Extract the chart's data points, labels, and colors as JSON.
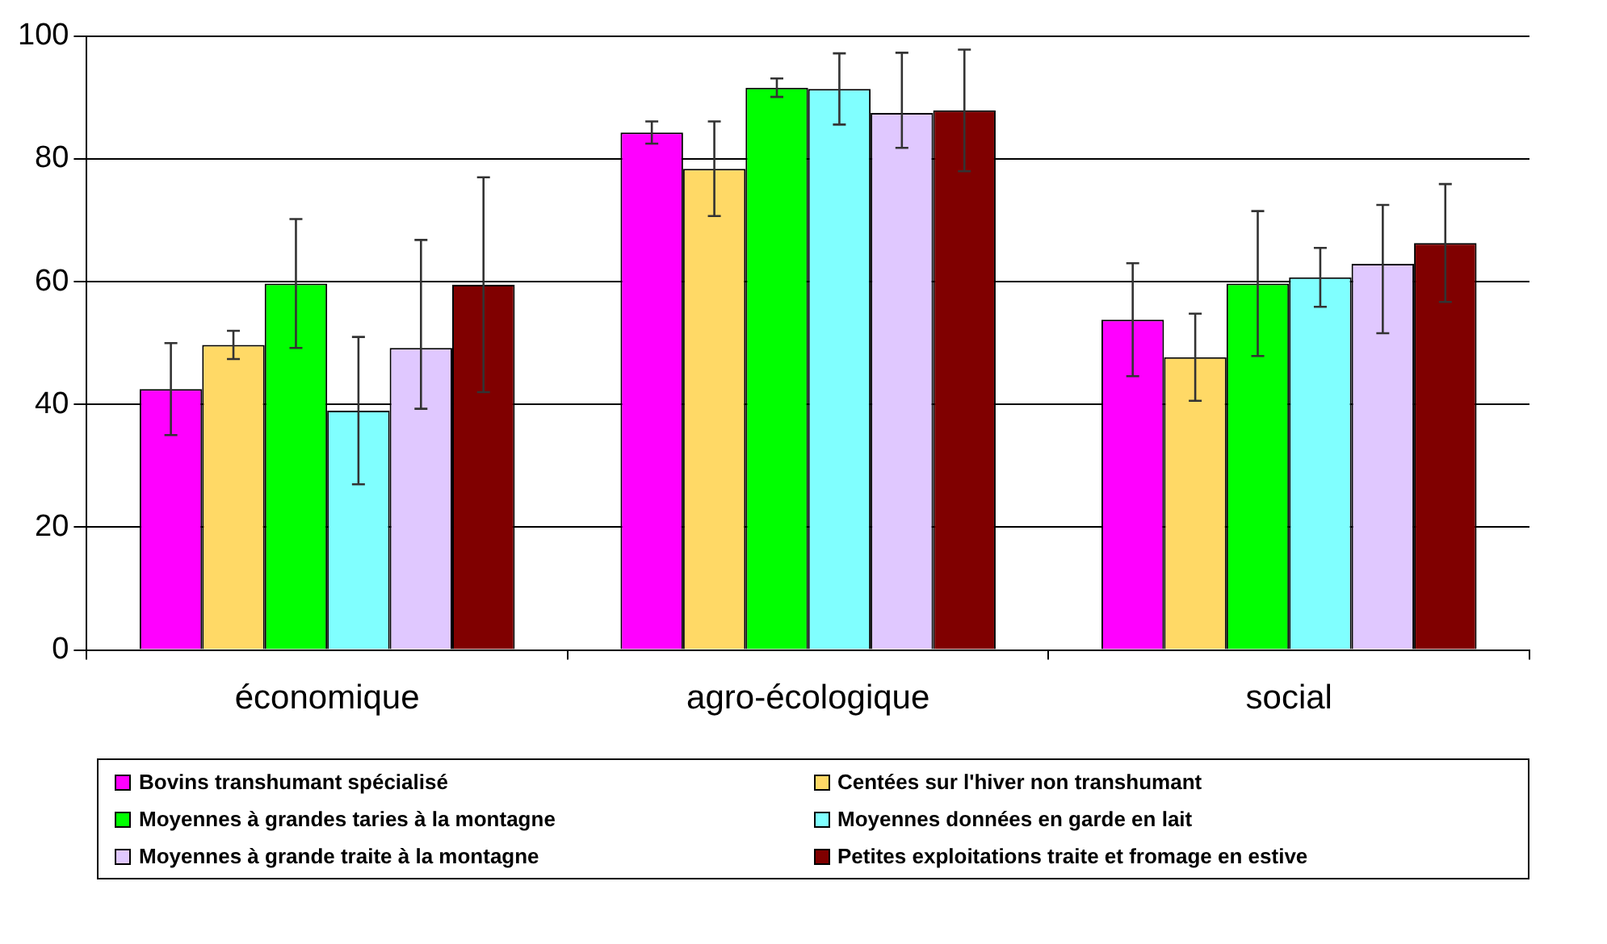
{
  "chart_data": {
    "type": "bar",
    "categories": [
      "économique",
      "agro-écologique",
      "social"
    ],
    "ylim": [
      0,
      100
    ],
    "yticks": [
      0,
      20,
      40,
      60,
      80,
      100
    ],
    "grid": "y",
    "legend": "bottom",
    "series": [
      {
        "name": "Bovins transhumant spécialisé",
        "color": "#ff00ff",
        "values": [
          42.5,
          84.3,
          53.8
        ],
        "errors": [
          7.5,
          1.8,
          9.2
        ]
      },
      {
        "name": "Centées sur l'hiver non transhumant",
        "color": "#ffd966",
        "values": [
          49.7,
          78.4,
          47.7
        ],
        "errors": [
          2.3,
          7.7,
          7.1
        ]
      },
      {
        "name": "Moyennes à grandes taries à la montagne",
        "color": "#00ff00",
        "values": [
          59.7,
          91.6,
          59.7
        ],
        "errors": [
          10.5,
          1.5,
          11.8
        ]
      },
      {
        "name": "Moyennes données en garde en lait",
        "color": "#80ffff",
        "values": [
          39,
          91.4,
          60.7
        ],
        "errors": [
          12,
          5.8,
          4.8
        ]
      },
      {
        "name": "Moyennes à grande traite à la montagne",
        "color": "#e0c8ff",
        "values": [
          49.2,
          87.5,
          62.9
        ],
        "errors": [
          [
            39.3,
            66.8
          ],
          [
            81.8,
            97.3
          ],
          [
            51.6,
            72.5
          ]
        ]
      },
      {
        "name": "Petites exploitations traite et fromage en estive",
        "color": "#800000",
        "values": [
          59.5,
          87.9,
          66.3
        ],
        "errors": [
          17.5,
          9.9,
          9.6
        ]
      }
    ]
  }
}
